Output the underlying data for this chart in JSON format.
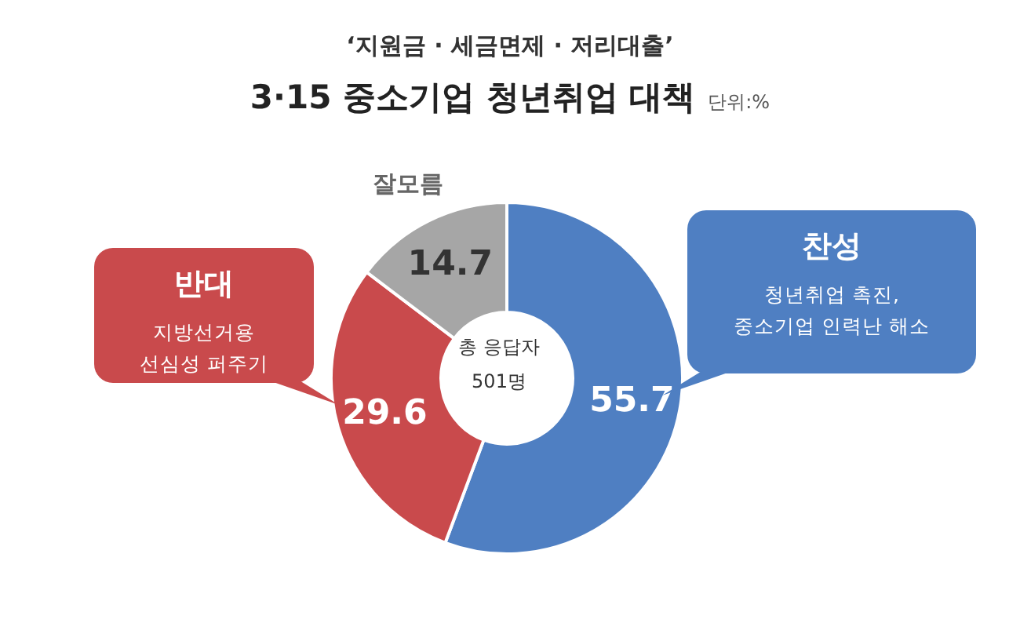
{
  "chart_data": {
    "type": "donut",
    "subtitle": "‘지원금 · 세금면제 · 저리대출’",
    "title": "3·15 중소기업 청년취업 대책",
    "categories": [
      "찬성",
      "반대",
      "잘모름"
    ],
    "values": [
      55.7,
      29.6,
      14.7
    ],
    "colors": [
      "#4f7fc2",
      "#c94a4c",
      "#a6a6a6"
    ],
    "data_labels": true,
    "annotations": [
      "단위:%",
      "청년취업 촉진,\n중소기업 인력난 해소",
      "지방선거용\n선심성 퍼주기",
      "총 응답자",
      "501명"
    ]
  }
}
